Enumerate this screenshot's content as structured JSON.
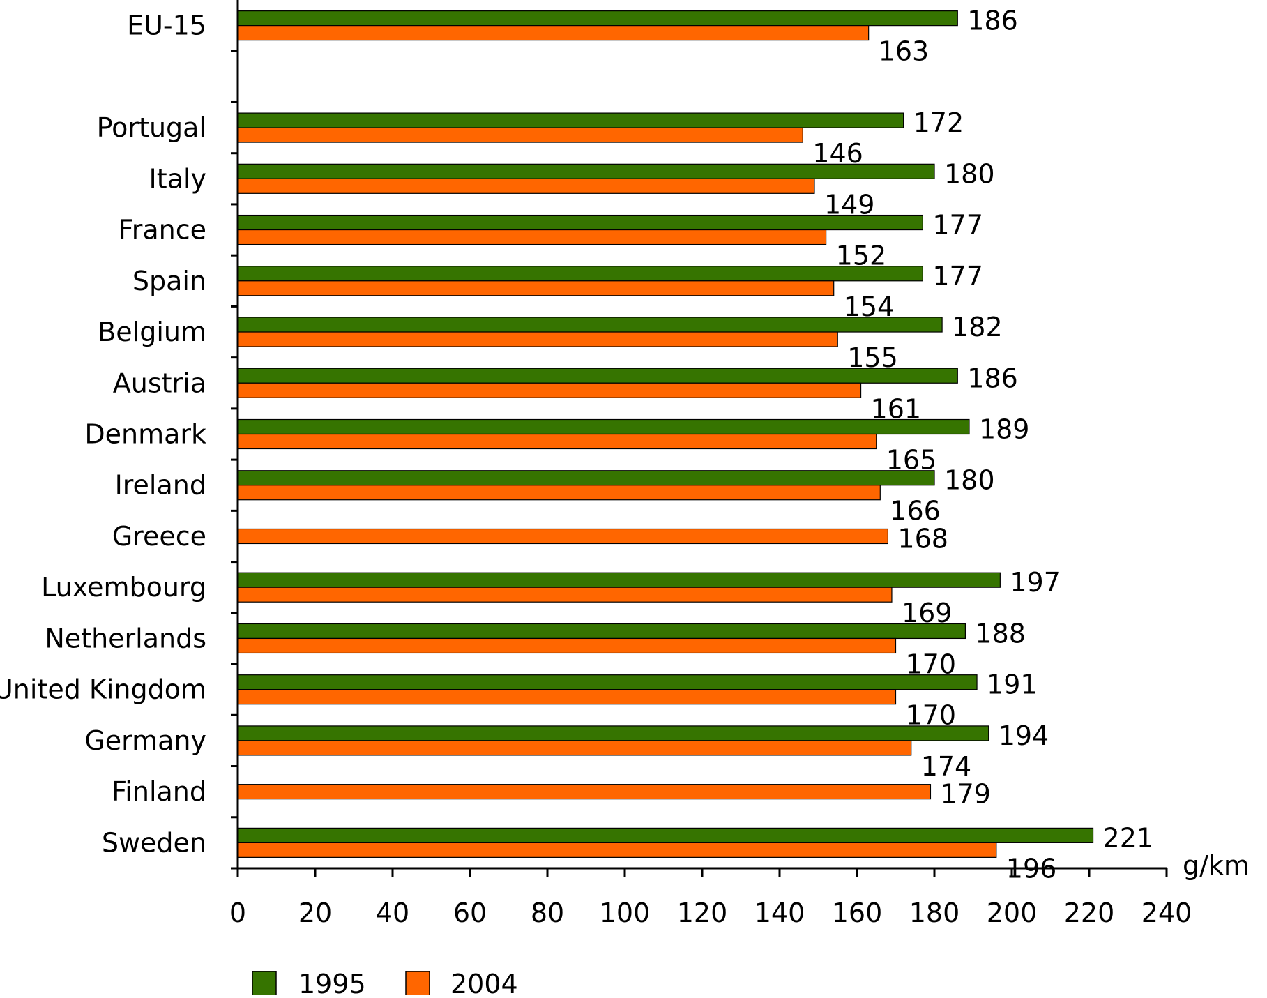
{
  "chart_data": {
    "type": "bar",
    "orientation": "horizontal",
    "categories": [
      "EU-15",
      "",
      "Portugal",
      "Italy",
      "France",
      "Spain",
      "Belgium",
      "Austria",
      "Denmark",
      "Ireland",
      "Greece",
      "Luxembourg",
      "Netherlands",
      "United Kingdom",
      "Germany",
      "Finland",
      "Sweden"
    ],
    "series": [
      {
        "name": "1995",
        "color": "#367400",
        "values": [
          186,
          null,
          172,
          180,
          177,
          177,
          182,
          186,
          189,
          180,
          null,
          197,
          188,
          191,
          194,
          null,
          221
        ]
      },
      {
        "name": "2004",
        "color": "#ff6600",
        "values": [
          163,
          null,
          146,
          149,
          152,
          154,
          155,
          161,
          165,
          166,
          168,
          169,
          170,
          170,
          174,
          179,
          196
        ]
      }
    ],
    "xlim": [
      0,
      240
    ],
    "xticks": [
      0,
      20,
      40,
      60,
      80,
      100,
      120,
      140,
      160,
      180,
      200,
      220,
      240
    ],
    "xunit": "g/km",
    "legend_position": "bottom-left",
    "grid": false
  }
}
